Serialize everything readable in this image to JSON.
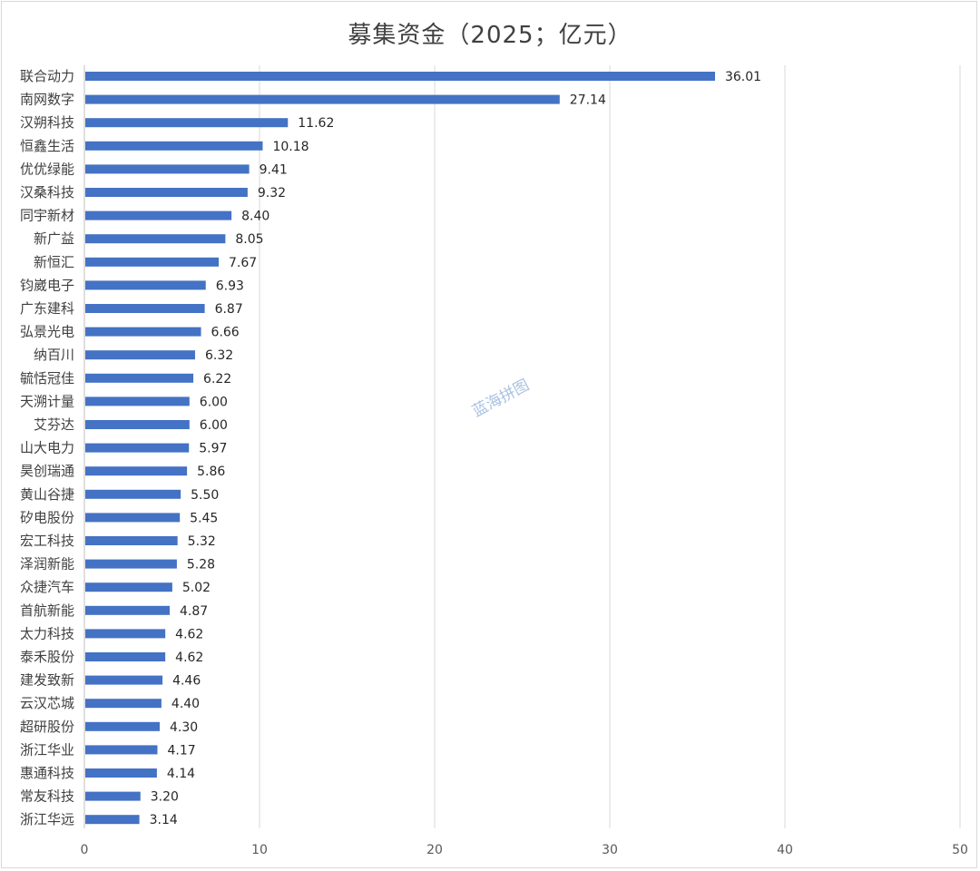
{
  "chart_data": {
    "type": "bar",
    "orientation": "horizontal",
    "title": "募集资金（2025；亿元）",
    "categories": [
      "联合动力",
      "南网数字",
      "汉朔科技",
      "恒鑫生活",
      "优优绿能",
      "汉桑科技",
      "同宇新材",
      "新广益",
      "新恒汇",
      "钧崴电子",
      "广东建科",
      "弘景光电",
      "纳百川",
      "毓恬冠佳",
      "天溯计量",
      "艾芬达",
      "山大电力",
      "昊创瑞通",
      "黄山谷捷",
      "矽电股份",
      "宏工科技",
      "泽润新能",
      "众捷汽车",
      "首航新能",
      "太力科技",
      "泰禾股份",
      "建发致新",
      "云汉芯城",
      "超研股份",
      "浙江华业",
      "惠通科技",
      "常友科技",
      "浙江华远"
    ],
    "values": [
      36.01,
      27.14,
      11.62,
      10.18,
      9.41,
      9.32,
      8.4,
      8.05,
      7.67,
      6.93,
      6.87,
      6.66,
      6.32,
      6.22,
      6.0,
      6.0,
      5.97,
      5.86,
      5.5,
      5.45,
      5.32,
      5.28,
      5.02,
      4.87,
      4.62,
      4.62,
      4.46,
      4.4,
      4.3,
      4.17,
      4.14,
      3.2,
      3.14
    ],
    "value_labels": [
      "36.01",
      "27.14",
      "11.62",
      "10.18",
      "9.41",
      "9.32",
      "8.40",
      "8.05",
      "7.67",
      "6.93",
      "6.87",
      "6.66",
      "6.32",
      "6.22",
      "6.00",
      "6.00",
      "5.97",
      "5.86",
      "5.50",
      "5.45",
      "5.32",
      "5.28",
      "5.02",
      "4.87",
      "4.62",
      "4.62",
      "4.46",
      "4.40",
      "4.30",
      "4.17",
      "4.14",
      "3.20",
      "3.14"
    ],
    "xlim": [
      0,
      50
    ],
    "xticks": [
      "0",
      "10",
      "20",
      "30",
      "40",
      "50"
    ],
    "grid": true,
    "bar_color": "#4472c4",
    "grid_color": "#d9d9d9"
  },
  "watermark": "蓝海拼图"
}
